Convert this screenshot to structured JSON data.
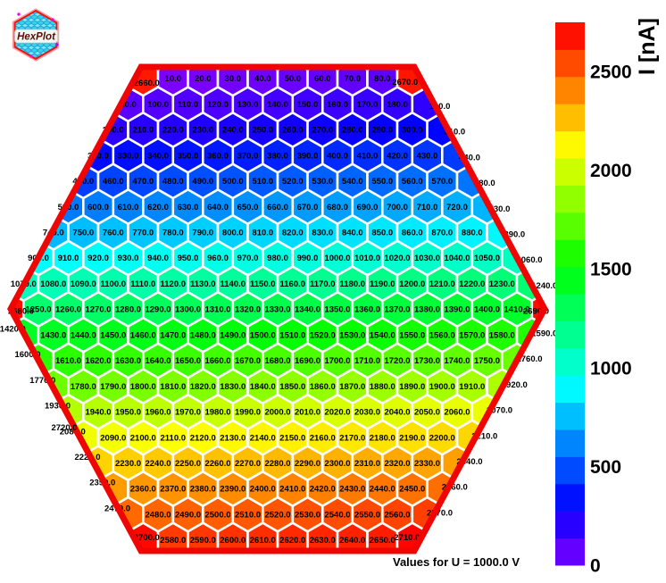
{
  "logo": {
    "text": "HexPlot"
  },
  "caption": "Values for U = 1000.0 V",
  "colorbar": {
    "title": "I [nA]",
    "ticks": [
      0,
      500,
      1000,
      1500,
      2000,
      2500
    ],
    "min": 0,
    "max": 2748,
    "segments": 20
  },
  "chart_data": {
    "type": "heatmap",
    "shape": "hexagonal-grid",
    "title": "",
    "value_unit": "nA",
    "label_format": "one-decimal",
    "palette": {
      "type": "rainbow-hsl",
      "hue_start": 270,
      "hue_end": 0,
      "vmax": 2720,
      "low_color_hint": "#7B00FF",
      "high_color_hint": "#FF0000",
      "cell_border": "#FFFFFF",
      "outline": "#F00505"
    },
    "rows": [
      {
        "values": [
          10,
          20,
          30,
          40,
          50,
          60,
          70,
          80
        ]
      },
      {
        "values": [
          90,
          100,
          110,
          120,
          130,
          140,
          150,
          160,
          170,
          180,
          190
        ]
      },
      {
        "values": [
          200,
          210,
          220,
          230,
          240,
          250,
          260,
          270,
          280,
          290,
          300,
          310
        ]
      },
      {
        "values": [
          320,
          330,
          340,
          350,
          360,
          370,
          380,
          390,
          400,
          410,
          420,
          430,
          440
        ]
      },
      {
        "values": [
          450,
          460,
          470,
          480,
          490,
          500,
          510,
          520,
          530,
          540,
          550,
          560,
          570,
          580
        ]
      },
      {
        "values": [
          590,
          600,
          610,
          620,
          630,
          640,
          650,
          660,
          670,
          680,
          690,
          700,
          710,
          720,
          730
        ]
      },
      {
        "values": [
          740,
          750,
          760,
          770,
          780,
          790,
          800,
          810,
          820,
          830,
          840,
          850,
          860,
          870,
          880,
          890
        ]
      },
      {
        "values": [
          900,
          910,
          920,
          930,
          940,
          950,
          960,
          970,
          980,
          990,
          1000,
          1010,
          1020,
          1030,
          1040,
          1050,
          1060
        ]
      },
      {
        "values": [
          1070,
          1080,
          1090,
          1100,
          1110,
          1120,
          1130,
          1140,
          1150,
          1160,
          1170,
          1180,
          1190,
          1200,
          1210,
          1220,
          1230,
          1240
        ]
      },
      {
        "values": [
          1250,
          1260,
          1270,
          1280,
          1290,
          1300,
          1310,
          1320,
          1330,
          1340,
          1350,
          1360,
          1370,
          1380,
          1390,
          1400,
          1410
        ]
      },
      {
        "values": [
          1420,
          1430,
          1440,
          1450,
          1460,
          1470,
          1480,
          1490,
          1500,
          1510,
          1520,
          1530,
          1540,
          1550,
          1560,
          1570,
          1580,
          1590
        ]
      },
      {
        "values": [
          1600,
          1610,
          1620,
          1630,
          1640,
          1650,
          1660,
          1670,
          1680,
          1690,
          1700,
          1710,
          1720,
          1730,
          1740,
          1750,
          1760
        ]
      },
      {
        "values": [
          1770,
          1780,
          1790,
          1800,
          1810,
          1820,
          1830,
          1840,
          1850,
          1860,
          1870,
          1880,
          1890,
          1900,
          1910,
          1920
        ]
      },
      {
        "values": [
          1930,
          1940,
          1950,
          1960,
          1970,
          1980,
          1990,
          2000,
          2010,
          2020,
          2030,
          2040,
          2050,
          2060,
          2070
        ]
      },
      {
        "values": [
          2080,
          2090,
          2100,
          2110,
          2120,
          2130,
          2140,
          2150,
          2160,
          2170,
          2180,
          2190,
          2200,
          2210
        ]
      },
      {
        "values": [
          2220,
          2230,
          2240,
          2250,
          2260,
          2270,
          2280,
          2290,
          2300,
          2310,
          2320,
          2330,
          2340
        ]
      },
      {
        "values": [
          2350,
          2360,
          2370,
          2380,
          2390,
          2400,
          2410,
          2420,
          2430,
          2440,
          2450,
          2460
        ]
      },
      {
        "values": [
          2470,
          2480,
          2490,
          2500,
          2510,
          2520,
          2530,
          2540,
          2550,
          2560,
          2570
        ]
      },
      {
        "values": [
          2580,
          2590,
          2600,
          2610,
          2620,
          2630,
          2640,
          2650
        ]
      }
    ],
    "corner_cells": [
      {
        "value": 2660,
        "corner": "top-left"
      },
      {
        "value": 2670,
        "corner": "top-right"
      },
      {
        "value": 2680,
        "corner": "mid-left"
      },
      {
        "value": 2690,
        "corner": "mid-right"
      },
      {
        "value": 2700,
        "corner": "bottom-left"
      },
      {
        "value": 2710,
        "corner": "bottom-right"
      }
    ],
    "extra_labels": [
      {
        "value": 2720,
        "position": "left-edge-between-rows-14-15"
      }
    ]
  }
}
